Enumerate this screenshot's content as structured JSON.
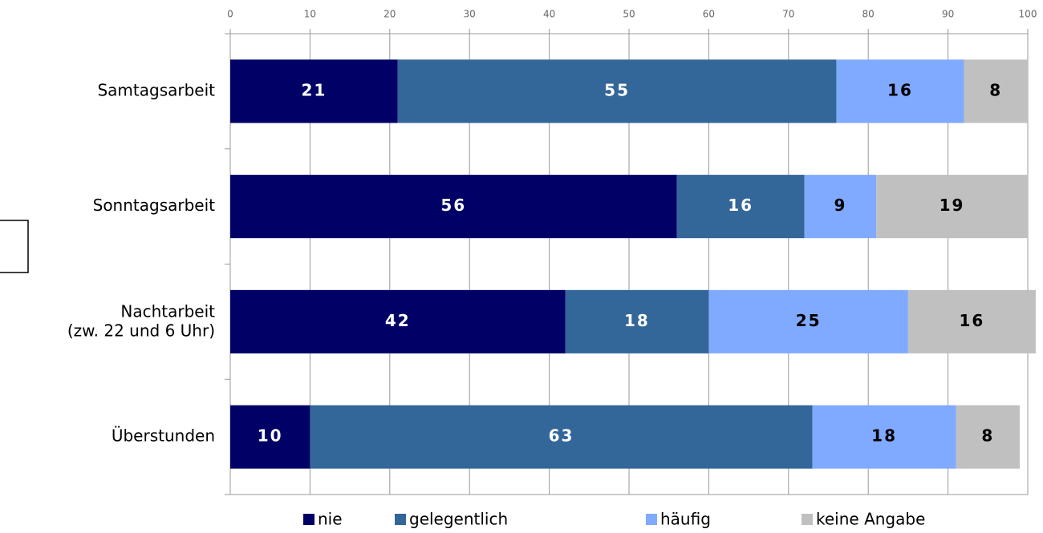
{
  "chart_data": {
    "type": "stacked-bar-horizontal",
    "categories": [
      "Samtagsarbeit",
      "Sonntagsarbeit",
      "Nachtarbeit\n(zw. 22 und 6 Uhr)",
      "Überstunden"
    ],
    "series": [
      {
        "name": "nie",
        "color": "#000066",
        "values": [
          21,
          56,
          42,
          10
        ]
      },
      {
        "name": "gelegentlich",
        "color": "#336699",
        "values": [
          55,
          16,
          18,
          63
        ]
      },
      {
        "name": "häufig",
        "color": "#80aaff",
        "values": [
          16,
          9,
          25,
          18
        ]
      },
      {
        "name": "keine Angabe",
        "color": "#c0c0c0",
        "values": [
          8,
          19,
          16,
          8
        ]
      }
    ],
    "xlim": [
      0,
      100
    ],
    "xticks": [
      0,
      10,
      20,
      30,
      40,
      50,
      60,
      70,
      80,
      90,
      100
    ],
    "grid": true,
    "legend": "bottom"
  }
}
